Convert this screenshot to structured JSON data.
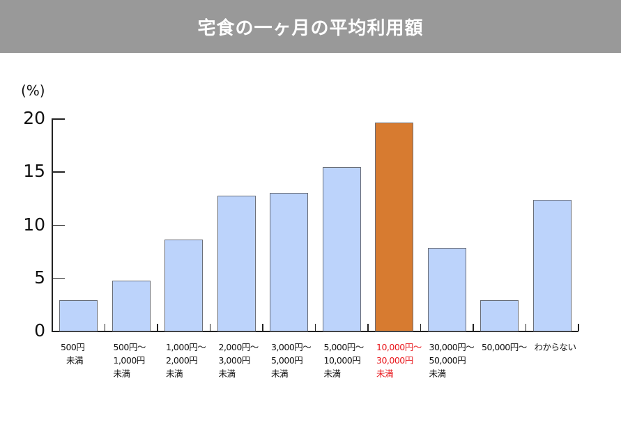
{
  "chart_data": {
    "type": "bar",
    "title": "宅食の一ヶ月の平均利用額",
    "ylabel": "(%)",
    "xlabel": "",
    "ylim": [
      0,
      20
    ],
    "yticks": [
      0,
      5,
      10,
      15,
      20
    ],
    "grid": false,
    "categories": [
      "500円未満",
      "500円～1,000円未満",
      "1,000円～2,000円未満",
      "2,000円～3,000円未満",
      "3,000円～5,000円未満",
      "5,000円～10,000円未満",
      "10,000円～30,000円未満",
      "30,000円～50,000円未満",
      "50,000円～",
      "わからない"
    ],
    "category_lines": [
      [
        "500円",
        "未満"
      ],
      [
        "500円～",
        "1,000円",
        "未満"
      ],
      [
        "1,000円～",
        "2,000円",
        "未満"
      ],
      [
        "2,000円～",
        "3,000円",
        "未満"
      ],
      [
        "3,000円～",
        "5,000円",
        "未満"
      ],
      [
        "5,000円～",
        "10,000円",
        "未満"
      ],
      [
        "10,000円～",
        "30,000円",
        "未満"
      ],
      [
        "30,000円～",
        "50,000円",
        "未満"
      ],
      [
        "50,000円～"
      ],
      [
        "わからない"
      ]
    ],
    "values": [
      2.9,
      4.7,
      8.6,
      12.7,
      13.0,
      15.4,
      19.6,
      7.8,
      2.9,
      12.3
    ],
    "highlight_index": 6,
    "colors": {
      "bar": "#bcd3fb",
      "highlight_bar": "#d77b30",
      "highlight_label": "#e8161b",
      "title_bg": "#999999"
    }
  }
}
